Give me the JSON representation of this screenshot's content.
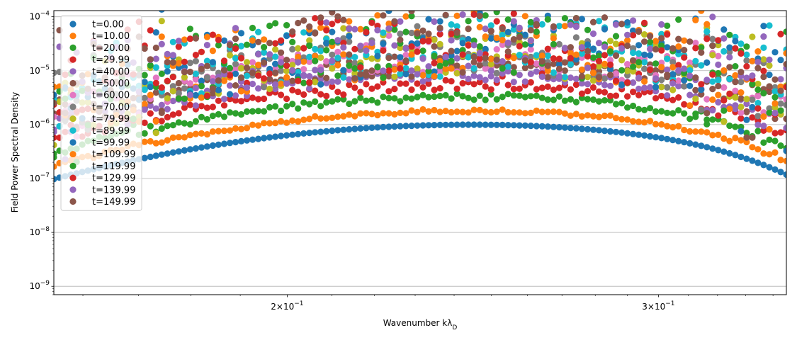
{
  "chart_data": {
    "type": "scatter",
    "title": "",
    "xlabel": "Wavenumber kλ",
    "xlabel_sub": "D",
    "ylabel": "Field Power Spectral Density",
    "xscale": "log",
    "yscale": "log",
    "xlim": [
      0.155,
      0.345
    ],
    "ylim": [
      7e-10,
      0.00013
    ],
    "x_ticks": [
      {
        "value": 0.2,
        "mantissa": "2",
        "base": "10",
        "exp": "−1"
      },
      {
        "value": 0.3,
        "mantissa": "3",
        "base": "10",
        "exp": "−1"
      }
    ],
    "y_ticks": [
      {
        "value": 1e-09,
        "base": "10",
        "exp": "−9"
      },
      {
        "value": 1e-08,
        "base": "10",
        "exp": "−8"
      },
      {
        "value": 1e-07,
        "base": "10",
        "exp": "−7"
      },
      {
        "value": 1e-06,
        "base": "10",
        "exp": "−6"
      },
      {
        "value": 1e-05,
        "base": "10",
        "exp": "−5"
      },
      {
        "value": 0.0001,
        "base": "10",
        "exp": "−4"
      }
    ],
    "grid": "y-major",
    "legend_position": "top-left",
    "series_model": {
      "k_min": 0.155,
      "k_max": 0.345,
      "n_points": 130,
      "peak_k": 0.245,
      "width": 0.3,
      "cutoff": 0.34,
      "cutoff_power": 18
    },
    "series": [
      {
        "name": "t=0.00",
        "color": "#1f77b4",
        "peak": 1e-06,
        "noise": 0.0
      },
      {
        "name": "t=10.00",
        "color": "#ff7f0e",
        "peak": 1.8e-06,
        "noise": 0.03
      },
      {
        "name": "t=20.00",
        "color": "#2ca02c",
        "peak": 3.3e-06,
        "noise": 0.06
      },
      {
        "name": "t=29.99",
        "color": "#d62728",
        "peak": 5.5e-06,
        "noise": 0.09
      },
      {
        "name": "t=40.00",
        "color": "#9467bd",
        "peak": 8.5e-06,
        "noise": 0.14
      },
      {
        "name": "t=50.00",
        "color": "#8c564b",
        "peak": 1.3e-05,
        "noise": 0.2
      },
      {
        "name": "t=60.00",
        "color": "#e377c2",
        "peak": 1.8e-05,
        "noise": 0.3
      },
      {
        "name": "t=70.00",
        "color": "#7f7f7f",
        "peak": 2.2e-05,
        "noise": 0.4
      },
      {
        "name": "t=79.99",
        "color": "#bcbd22",
        "peak": 2.5e-05,
        "noise": 0.5
      },
      {
        "name": "t=89.99",
        "color": "#17becf",
        "peak": 2.8e-05,
        "noise": 0.55
      },
      {
        "name": "t=99.99",
        "color": "#1f77b4",
        "peak": 3e-05,
        "noise": 0.6
      },
      {
        "name": "t=109.99",
        "color": "#ff7f0e",
        "peak": 3.1e-05,
        "noise": 0.6
      },
      {
        "name": "t=119.99",
        "color": "#2ca02c",
        "peak": 3.2e-05,
        "noise": 0.6
      },
      {
        "name": "t=129.99",
        "color": "#d62728",
        "peak": 3.3e-05,
        "noise": 0.6
      },
      {
        "name": "t=139.99",
        "color": "#9467bd",
        "peak": 3.3e-05,
        "noise": 0.6
      },
      {
        "name": "t=149.99",
        "color": "#8c564b",
        "peak": 3.4e-05,
        "noise": 0.6
      }
    ]
  }
}
